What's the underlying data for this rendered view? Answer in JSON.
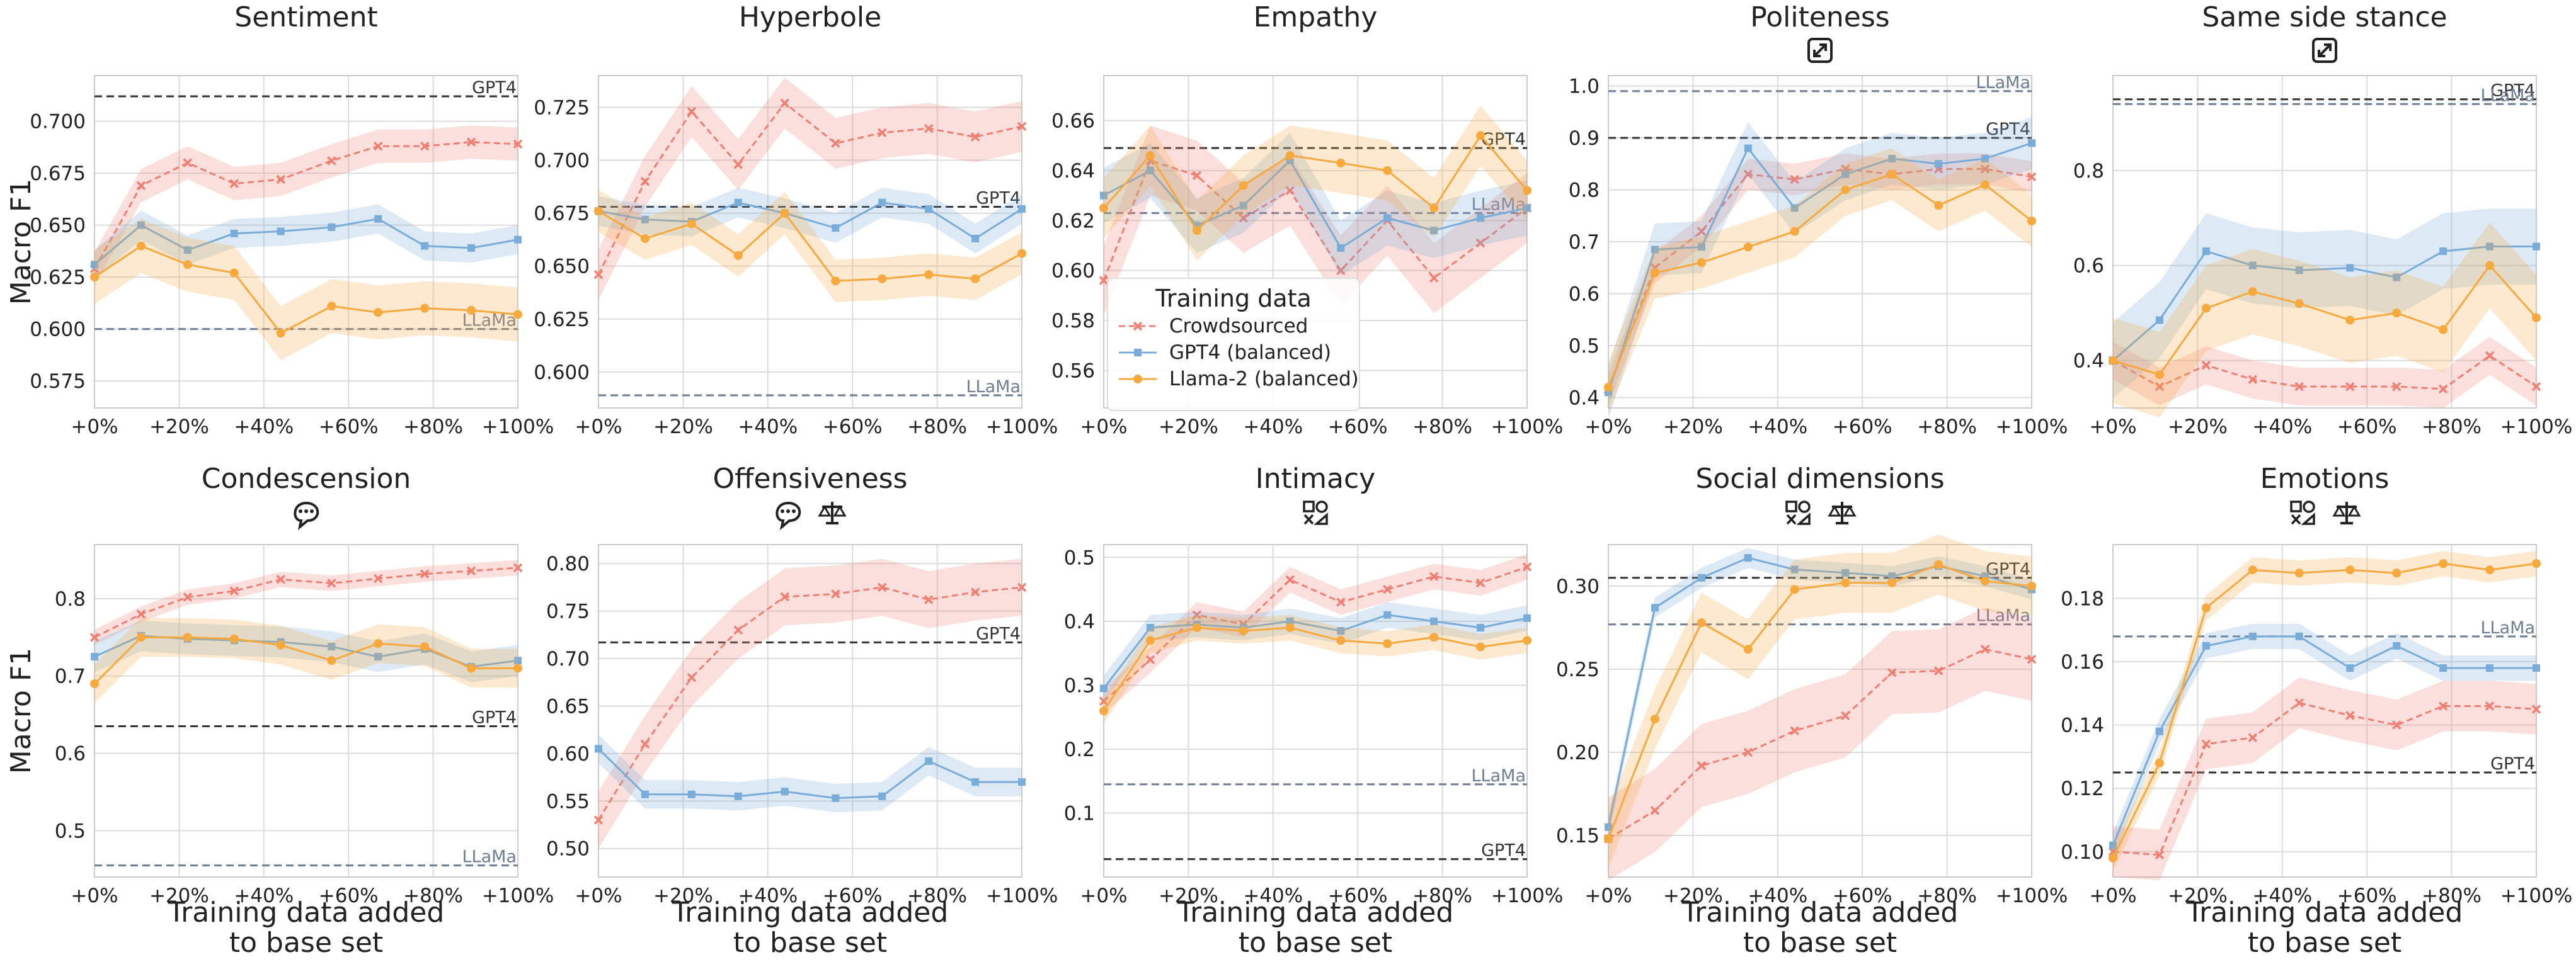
{
  "colors": {
    "crowd": "#f07f72",
    "gpt4": "#79acd9",
    "llama": "#f7a93e",
    "gpt4ref": "#333333",
    "llamaref": "#6e7e96",
    "grid": "#dcdcdc",
    "axis": "#cccccc"
  },
  "legend": {
    "title": "Training data",
    "entries": [
      {
        "key": "crowd",
        "label": "Crowdsourced",
        "marker": "x",
        "dash": true
      },
      {
        "key": "gpt4",
        "label": "GPT4 (balanced)",
        "marker": "square",
        "dash": false
      },
      {
        "key": "llama",
        "label": "Llama-2 (balanced)",
        "marker": "circle",
        "dash": false
      }
    ]
  },
  "axis_text": {
    "ylabel": "Macro F1",
    "xlabel_line1": "Training data added",
    "xlabel_line2": "to base set",
    "x_ticks": [
      "+0%",
      "+20%",
      "+40%",
      "+60%",
      "+80%",
      "+100%"
    ],
    "x_tick_values": [
      0,
      20,
      40,
      60,
      80,
      100
    ]
  },
  "chart_data": [
    {
      "type": "line",
      "title": "Sentiment",
      "icons": [],
      "ylim": [
        0.562,
        0.722
      ],
      "yticks": [
        0.575,
        0.6,
        0.625,
        0.65,
        0.675,
        0.7
      ],
      "ytick_labels": [
        "0.575",
        "0.600",
        "0.625",
        "0.650",
        "0.675",
        "0.700"
      ],
      "x": [
        0,
        11,
        22,
        33,
        44,
        56,
        67,
        78,
        89,
        100
      ],
      "ref": {
        "gpt4": 0.712,
        "llama": 0.6
      },
      "series": [
        {
          "key": "crowd",
          "name": "Crowdsourced",
          "values": [
            0.629,
            0.669,
            0.68,
            0.67,
            0.672,
            0.681,
            0.688,
            0.688,
            0.69,
            0.689
          ],
          "band": 0.008
        },
        {
          "key": "gpt4",
          "name": "GPT4 (balanced)",
          "values": [
            0.631,
            0.65,
            0.638,
            0.646,
            0.647,
            0.649,
            0.653,
            0.64,
            0.639,
            0.643
          ],
          "band": 0.007
        },
        {
          "key": "llama",
          "name": "Llama-2 (balanced)",
          "values": [
            0.625,
            0.64,
            0.631,
            0.627,
            0.598,
            0.611,
            0.608,
            0.61,
            0.609,
            0.607
          ],
          "band": 0.013
        }
      ]
    },
    {
      "type": "line",
      "title": "Hyperbole",
      "icons": [],
      "ylim": [
        0.583,
        0.74
      ],
      "yticks": [
        0.6,
        0.625,
        0.65,
        0.675,
        0.7,
        0.725
      ],
      "ytick_labels": [
        "0.600",
        "0.625",
        "0.650",
        "0.675",
        "0.700",
        "0.725"
      ],
      "x": [
        0,
        11,
        22,
        33,
        44,
        56,
        67,
        78,
        89,
        100
      ],
      "ref": {
        "gpt4": 0.678,
        "llama": 0.589
      },
      "series": [
        {
          "key": "crowd",
          "name": "Crowdsourced",
          "values": [
            0.646,
            0.69,
            0.723,
            0.698,
            0.727,
            0.708,
            0.713,
            0.715,
            0.711,
            0.716
          ],
          "band": 0.012
        },
        {
          "key": "gpt4",
          "name": "GPT4 (balanced)",
          "values": [
            0.676,
            0.672,
            0.671,
            0.68,
            0.675,
            0.668,
            0.68,
            0.677,
            0.663,
            0.677
          ],
          "band": 0.007
        },
        {
          "key": "llama",
          "name": "Llama-2 (balanced)",
          "values": [
            0.676,
            0.663,
            0.67,
            0.655,
            0.675,
            0.643,
            0.644,
            0.646,
            0.644,
            0.656
          ],
          "band": 0.01
        }
      ]
    },
    {
      "type": "line",
      "title": "Empathy",
      "icons": [],
      "ylim": [
        0.545,
        0.678
      ],
      "yticks": [
        0.56,
        0.58,
        0.6,
        0.62,
        0.64,
        0.66
      ],
      "ytick_labels": [
        "0.56",
        "0.58",
        "0.60",
        "0.62",
        "0.64",
        "0.66"
      ],
      "x": [
        0,
        11,
        22,
        33,
        44,
        56,
        67,
        78,
        89,
        100
      ],
      "ref": {
        "gpt4": 0.649,
        "llama": 0.623
      },
      "series": [
        {
          "key": "crowd",
          "name": "Crowdsourced",
          "values": [
            0.596,
            0.644,
            0.638,
            0.621,
            0.632,
            0.6,
            0.62,
            0.597,
            0.611,
            0.625
          ],
          "band": 0.014
        },
        {
          "key": "gpt4",
          "name": "GPT4 (balanced)",
          "values": [
            0.63,
            0.64,
            0.618,
            0.626,
            0.644,
            0.609,
            0.621,
            0.616,
            0.621,
            0.625
          ],
          "band": 0.011
        },
        {
          "key": "llama",
          "name": "Llama-2 (balanced)",
          "values": [
            0.625,
            0.646,
            0.616,
            0.634,
            0.646,
            0.643,
            0.64,
            0.625,
            0.654,
            0.632
          ],
          "band": 0.012
        }
      ]
    },
    {
      "type": "line",
      "title": "Politeness",
      "icons": [
        "expand-icon"
      ],
      "ylim": [
        0.38,
        1.02
      ],
      "yticks": [
        0.4,
        0.5,
        0.6,
        0.7,
        0.8,
        0.9,
        1.0
      ],
      "ytick_labels": [
        "0.4",
        "0.5",
        "0.6",
        "0.7",
        "0.8",
        "0.9",
        "1.0"
      ],
      "x": [
        0,
        11,
        22,
        33,
        44,
        56,
        67,
        78,
        89,
        100
      ],
      "ref": {
        "gpt4": 0.9,
        "llama": 0.99
      },
      "series": [
        {
          "key": "crowd",
          "name": "Crowdsourced",
          "values": [
            0.415,
            0.65,
            0.72,
            0.83,
            0.82,
            0.84,
            0.83,
            0.84,
            0.84,
            0.825
          ],
          "band": 0.03
        },
        {
          "key": "gpt4",
          "name": "GPT4 (balanced)",
          "values": [
            0.41,
            0.685,
            0.69,
            0.88,
            0.765,
            0.83,
            0.86,
            0.85,
            0.86,
            0.89
          ],
          "band": 0.05
        },
        {
          "key": "llama",
          "name": "Llama-2 (balanced)",
          "values": [
            0.42,
            0.64,
            0.66,
            0.69,
            0.72,
            0.8,
            0.83,
            0.77,
            0.81,
            0.74
          ],
          "band": 0.05
        }
      ]
    },
    {
      "type": "line",
      "title": "Same side stance",
      "icons": [
        "expand-icon"
      ],
      "ylim": [
        0.3,
        1.0
      ],
      "yticks": [
        0.4,
        0.6,
        0.8
      ],
      "ytick_labels": [
        "0.4",
        "0.6",
        "0.8"
      ],
      "x": [
        0,
        11,
        22,
        33,
        44,
        56,
        67,
        78,
        89,
        100
      ],
      "ref": {
        "gpt4": 0.95,
        "llama": 0.94
      },
      "series": [
        {
          "key": "crowd",
          "name": "Crowdsourced",
          "values": [
            0.4,
            0.345,
            0.39,
            0.36,
            0.345,
            0.345,
            0.345,
            0.34,
            0.41,
            0.345
          ],
          "band": 0.04
        },
        {
          "key": "gpt4",
          "name": "GPT4 (balanced)",
          "values": [
            0.4,
            0.485,
            0.63,
            0.6,
            0.59,
            0.595,
            0.575,
            0.63,
            0.64,
            0.64
          ],
          "band": 0.08
        },
        {
          "key": "llama",
          "name": "Llama-2 (balanced)",
          "values": [
            0.4,
            0.37,
            0.51,
            0.545,
            0.52,
            0.485,
            0.5,
            0.465,
            0.6,
            0.49
          ],
          "band": 0.09
        }
      ]
    },
    {
      "type": "line",
      "title": "Condescension",
      "icons": [
        "chat-bubble-icon"
      ],
      "ylim": [
        0.44,
        0.87
      ],
      "yticks": [
        0.5,
        0.6,
        0.7,
        0.8
      ],
      "ytick_labels": [
        "0.5",
        "0.6",
        "0.7",
        "0.8"
      ],
      "x": [
        0,
        11,
        22,
        33,
        44,
        56,
        67,
        78,
        89,
        100
      ],
      "ref": {
        "gpt4": 0.635,
        "llama": 0.455
      },
      "series": [
        {
          "key": "crowd",
          "name": "Crowdsourced",
          "values": [
            0.75,
            0.78,
            0.802,
            0.81,
            0.825,
            0.82,
            0.826,
            0.832,
            0.836,
            0.84
          ],
          "band": 0.01
        },
        {
          "key": "gpt4",
          "name": "GPT4 (balanced)",
          "values": [
            0.725,
            0.752,
            0.748,
            0.746,
            0.744,
            0.738,
            0.725,
            0.735,
            0.712,
            0.72
          ],
          "band": 0.02
        },
        {
          "key": "llama",
          "name": "Llama-2 (balanced)",
          "values": [
            0.69,
            0.75,
            0.75,
            0.748,
            0.74,
            0.72,
            0.742,
            0.738,
            0.71,
            0.71
          ],
          "band": 0.025
        }
      ]
    },
    {
      "type": "line",
      "title": "Offensiveness",
      "icons": [
        "chat-bubble-icon",
        "scale-icon"
      ],
      "ylim": [
        0.47,
        0.82
      ],
      "yticks": [
        0.5,
        0.55,
        0.6,
        0.65,
        0.7,
        0.75,
        0.8
      ],
      "ytick_labels": [
        "0.50",
        "0.55",
        "0.60",
        "0.65",
        "0.70",
        "0.75",
        "0.80"
      ],
      "x": [
        0,
        11,
        22,
        33,
        44,
        56,
        67,
        78,
        89,
        100
      ],
      "ref": {
        "gpt4": 0.717,
        "llama": null
      },
      "series": [
        {
          "key": "crowd",
          "name": "Crowdsourced",
          "values": [
            0.53,
            0.61,
            0.68,
            0.73,
            0.765,
            0.768,
            0.775,
            0.762,
            0.77,
            0.775
          ],
          "band": 0.03
        },
        {
          "key": "gpt4",
          "name": "GPT4 (balanced)",
          "values": [
            0.605,
            0.557,
            0.557,
            0.555,
            0.56,
            0.553,
            0.555,
            0.592,
            0.57,
            0.57
          ],
          "band": 0.015
        }
      ]
    },
    {
      "type": "line",
      "title": "Intimacy",
      "icons": [
        "shapes-icon"
      ],
      "ylim": [
        0.0,
        0.52
      ],
      "yticks": [
        0.1,
        0.2,
        0.3,
        0.4,
        0.5
      ],
      "ytick_labels": [
        "0.1",
        "0.2",
        "0.3",
        "0.4",
        "0.5"
      ],
      "x": [
        0,
        11,
        22,
        33,
        44,
        56,
        67,
        78,
        89,
        100
      ],
      "ref": {
        "gpt4": 0.028,
        "llama": 0.145
      },
      "series": [
        {
          "key": "crowd",
          "name": "Crowdsourced",
          "values": [
            0.275,
            0.34,
            0.41,
            0.395,
            0.465,
            0.43,
            0.45,
            0.47,
            0.46,
            0.485
          ],
          "band": 0.02
        },
        {
          "key": "gpt4",
          "name": "GPT4 (balanced)",
          "values": [
            0.295,
            0.39,
            0.395,
            0.39,
            0.4,
            0.385,
            0.41,
            0.4,
            0.39,
            0.405
          ],
          "band": 0.02
        },
        {
          "key": "llama",
          "name": "Llama-2 (balanced)",
          "values": [
            0.26,
            0.37,
            0.39,
            0.385,
            0.39,
            0.37,
            0.365,
            0.375,
            0.36,
            0.37
          ],
          "band": 0.02
        }
      ]
    },
    {
      "type": "line",
      "title": "Social dimensions",
      "icons": [
        "shapes-icon",
        "scale-icon"
      ],
      "ylim": [
        0.125,
        0.325
      ],
      "yticks": [
        0.15,
        0.2,
        0.25,
        0.3
      ],
      "ytick_labels": [
        "0.15",
        "0.20",
        "0.25",
        "0.30"
      ],
      "x": [
        0,
        11,
        22,
        33,
        44,
        56,
        67,
        78,
        89,
        100
      ],
      "ref": {
        "gpt4": 0.305,
        "llama": 0.277
      },
      "series": [
        {
          "key": "crowd",
          "name": "Crowdsourced",
          "values": [
            0.148,
            0.165,
            0.192,
            0.2,
            0.213,
            0.222,
            0.248,
            0.249,
            0.262,
            0.256
          ],
          "band": 0.025
        },
        {
          "key": "gpt4",
          "name": "GPT4 (balanced)",
          "values": [
            0.155,
            0.287,
            0.305,
            0.317,
            0.31,
            0.308,
            0.306,
            0.312,
            0.306,
            0.298
          ],
          "band": 0.006
        },
        {
          "key": "llama",
          "name": "Llama-2 (balanced)",
          "values": [
            0.148,
            0.22,
            0.278,
            0.262,
            0.298,
            0.302,
            0.302,
            0.313,
            0.303,
            0.3
          ],
          "band": 0.018
        }
      ]
    },
    {
      "type": "line",
      "title": "Emotions",
      "icons": [
        "shapes-icon",
        "scale-icon"
      ],
      "ylim": [
        0.092,
        0.197
      ],
      "yticks": [
        0.1,
        0.12,
        0.14,
        0.16,
        0.18
      ],
      "ytick_labels": [
        "0.10",
        "0.12",
        "0.14",
        "0.16",
        "0.18"
      ],
      "x": [
        0,
        11,
        22,
        33,
        44,
        56,
        67,
        78,
        89,
        100
      ],
      "ref": {
        "gpt4": 0.125,
        "llama": 0.168
      },
      "series": [
        {
          "key": "crowd",
          "name": "Crowdsourced",
          "values": [
            0.1,
            0.099,
            0.134,
            0.136,
            0.147,
            0.143,
            0.14,
            0.146,
            0.146,
            0.145
          ],
          "band": 0.008
        },
        {
          "key": "gpt4",
          "name": "GPT4 (balanced)",
          "values": [
            0.102,
            0.138,
            0.165,
            0.168,
            0.168,
            0.158,
            0.165,
            0.158,
            0.158,
            0.158
          ],
          "band": 0.004
        },
        {
          "key": "llama",
          "name": "Llama-2 (balanced)",
          "values": [
            0.098,
            0.128,
            0.177,
            0.189,
            0.188,
            0.189,
            0.188,
            0.191,
            0.189,
            0.191
          ],
          "band": 0.004
        }
      ]
    }
  ],
  "ref_labels": {
    "gpt4": "GPT4",
    "llama": "LLaMa"
  }
}
